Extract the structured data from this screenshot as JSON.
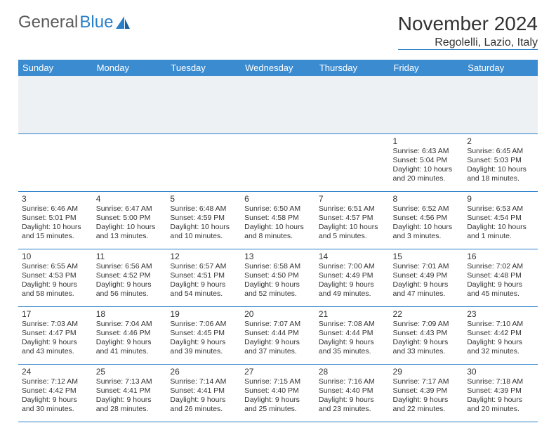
{
  "brand": {
    "part1": "General",
    "part2": "Blue"
  },
  "title": "November 2024",
  "location": "Regolelli, Lazio, Italy",
  "colors": {
    "header_bg": "#3b8bd0",
    "rule": "#2a7fc9",
    "spacer": "#eef1f3",
    "text": "#333333",
    "logo_gray": "#5a5a5a"
  },
  "weekdays": [
    "Sunday",
    "Monday",
    "Tuesday",
    "Wednesday",
    "Thursday",
    "Friday",
    "Saturday"
  ],
  "weeks": [
    [
      null,
      null,
      null,
      null,
      null,
      {
        "n": "1",
        "sr": "6:43 AM",
        "ss": "5:04 PM",
        "dl": "10 hours and 20 minutes."
      },
      {
        "n": "2",
        "sr": "6:45 AM",
        "ss": "5:03 PM",
        "dl": "10 hours and 18 minutes."
      }
    ],
    [
      {
        "n": "3",
        "sr": "6:46 AM",
        "ss": "5:01 PM",
        "dl": "10 hours and 15 minutes."
      },
      {
        "n": "4",
        "sr": "6:47 AM",
        "ss": "5:00 PM",
        "dl": "10 hours and 13 minutes."
      },
      {
        "n": "5",
        "sr": "6:48 AM",
        "ss": "4:59 PM",
        "dl": "10 hours and 10 minutes."
      },
      {
        "n": "6",
        "sr": "6:50 AM",
        "ss": "4:58 PM",
        "dl": "10 hours and 8 minutes."
      },
      {
        "n": "7",
        "sr": "6:51 AM",
        "ss": "4:57 PM",
        "dl": "10 hours and 5 minutes."
      },
      {
        "n": "8",
        "sr": "6:52 AM",
        "ss": "4:56 PM",
        "dl": "10 hours and 3 minutes."
      },
      {
        "n": "9",
        "sr": "6:53 AM",
        "ss": "4:54 PM",
        "dl": "10 hours and 1 minute."
      }
    ],
    [
      {
        "n": "10",
        "sr": "6:55 AM",
        "ss": "4:53 PM",
        "dl": "9 hours and 58 minutes."
      },
      {
        "n": "11",
        "sr": "6:56 AM",
        "ss": "4:52 PM",
        "dl": "9 hours and 56 minutes."
      },
      {
        "n": "12",
        "sr": "6:57 AM",
        "ss": "4:51 PM",
        "dl": "9 hours and 54 minutes."
      },
      {
        "n": "13",
        "sr": "6:58 AM",
        "ss": "4:50 PM",
        "dl": "9 hours and 52 minutes."
      },
      {
        "n": "14",
        "sr": "7:00 AM",
        "ss": "4:49 PM",
        "dl": "9 hours and 49 minutes."
      },
      {
        "n": "15",
        "sr": "7:01 AM",
        "ss": "4:49 PM",
        "dl": "9 hours and 47 minutes."
      },
      {
        "n": "16",
        "sr": "7:02 AM",
        "ss": "4:48 PM",
        "dl": "9 hours and 45 minutes."
      }
    ],
    [
      {
        "n": "17",
        "sr": "7:03 AM",
        "ss": "4:47 PM",
        "dl": "9 hours and 43 minutes."
      },
      {
        "n": "18",
        "sr": "7:04 AM",
        "ss": "4:46 PM",
        "dl": "9 hours and 41 minutes."
      },
      {
        "n": "19",
        "sr": "7:06 AM",
        "ss": "4:45 PM",
        "dl": "9 hours and 39 minutes."
      },
      {
        "n": "20",
        "sr": "7:07 AM",
        "ss": "4:44 PM",
        "dl": "9 hours and 37 minutes."
      },
      {
        "n": "21",
        "sr": "7:08 AM",
        "ss": "4:44 PM",
        "dl": "9 hours and 35 minutes."
      },
      {
        "n": "22",
        "sr": "7:09 AM",
        "ss": "4:43 PM",
        "dl": "9 hours and 33 minutes."
      },
      {
        "n": "23",
        "sr": "7:10 AM",
        "ss": "4:42 PM",
        "dl": "9 hours and 32 minutes."
      }
    ],
    [
      {
        "n": "24",
        "sr": "7:12 AM",
        "ss": "4:42 PM",
        "dl": "9 hours and 30 minutes."
      },
      {
        "n": "25",
        "sr": "7:13 AM",
        "ss": "4:41 PM",
        "dl": "9 hours and 28 minutes."
      },
      {
        "n": "26",
        "sr": "7:14 AM",
        "ss": "4:41 PM",
        "dl": "9 hours and 26 minutes."
      },
      {
        "n": "27",
        "sr": "7:15 AM",
        "ss": "4:40 PM",
        "dl": "9 hours and 25 minutes."
      },
      {
        "n": "28",
        "sr": "7:16 AM",
        "ss": "4:40 PM",
        "dl": "9 hours and 23 minutes."
      },
      {
        "n": "29",
        "sr": "7:17 AM",
        "ss": "4:39 PM",
        "dl": "9 hours and 22 minutes."
      },
      {
        "n": "30",
        "sr": "7:18 AM",
        "ss": "4:39 PM",
        "dl": "9 hours and 20 minutes."
      }
    ]
  ],
  "labels": {
    "sunrise": "Sunrise: ",
    "sunset": "Sunset: ",
    "daylight": "Daylight: "
  }
}
